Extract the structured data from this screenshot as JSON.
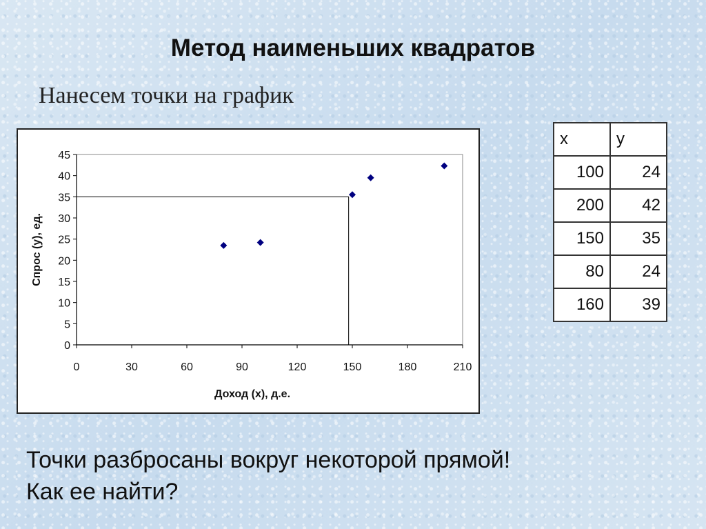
{
  "title": "Метод наименьших квадратов",
  "subtitle": "Нанесем точки на график",
  "table": {
    "headers": [
      "x",
      "y"
    ],
    "rows": [
      [
        "100",
        "24"
      ],
      [
        "200",
        "42"
      ],
      [
        "150",
        "35"
      ],
      [
        "80",
        "24"
      ],
      [
        "160",
        "39"
      ]
    ]
  },
  "body": {
    "line1": "Точки разбросаны вокруг некоторой прямой!",
    "line2": "Как ее найти?"
  },
  "chart_data": {
    "type": "scatter",
    "title": "",
    "xlabel": "Доход (x), д.е.",
    "ylabel": "Спрос (y), ед.",
    "xlim": [
      0,
      210
    ],
    "ylim": [
      0,
      45
    ],
    "x_ticks": [
      0,
      30,
      60,
      90,
      120,
      150,
      180,
      210
    ],
    "y_ticks": [
      0,
      5,
      10,
      15,
      20,
      25,
      30,
      35,
      40,
      45
    ],
    "grid": false,
    "legend": "none",
    "marker": "diamond",
    "marker_color": "#000080",
    "points": [
      {
        "x": 80,
        "y": 23.5
      },
      {
        "x": 100,
        "y": 24.2
      },
      {
        "x": 150,
        "y": 35.5
      },
      {
        "x": 160,
        "y": 39.5
      },
      {
        "x": 200,
        "y": 42.3
      }
    ],
    "reference_point": {
      "x": 148,
      "y": 35
    }
  }
}
